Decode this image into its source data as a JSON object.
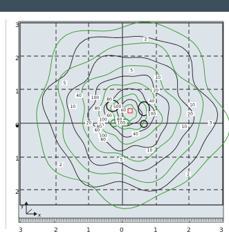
{
  "window": {
    "header_color": "#3d4f5c"
  },
  "plot": {
    "background": "#dde4e9",
    "axis_ticks": {
      "y_left": [
        "3",
        "2",
        "1",
        "0",
        "1",
        "2"
      ],
      "x_bottom": [
        "3",
        "2",
        "1",
        "0",
        "1",
        "2",
        "3"
      ]
    },
    "triad": {
      "y": "y",
      "x": "x"
    },
    "contour_labels": [
      {
        "t": "2",
        "u": 0.62,
        "v": 0.09
      },
      {
        "t": "5",
        "u": 0.22,
        "v": 0.33
      },
      {
        "t": "5",
        "u": 0.55,
        "v": 0.26
      },
      {
        "t": "5",
        "u": 0.5,
        "v": 0.75
      },
      {
        "t": "10",
        "u": 0.68,
        "v": 0.3
      },
      {
        "t": "10",
        "u": 0.26,
        "v": 0.46
      },
      {
        "t": "10",
        "u": 0.85,
        "v": 0.45
      },
      {
        "t": "10",
        "u": 0.81,
        "v": 0.57
      },
      {
        "t": "10",
        "u": 0.64,
        "v": 0.7
      },
      {
        "t": "20",
        "u": 0.67,
        "v": 0.37
      },
      {
        "t": "20",
        "u": 0.84,
        "v": 0.5
      },
      {
        "t": "20",
        "u": 0.34,
        "v": 0.55
      },
      {
        "t": "40",
        "u": 0.29,
        "v": 0.4
      },
      {
        "t": "40",
        "u": 0.65,
        "v": 0.43
      },
      {
        "t": "40",
        "u": 0.4,
        "v": 0.56
      },
      {
        "t": "40",
        "u": 0.57,
        "v": 0.61
      },
      {
        "t": "80",
        "u": 0.38,
        "v": 0.47
      },
      {
        "t": "80",
        "u": 0.44,
        "v": 0.42
      },
      {
        "t": "80",
        "u": 0.49,
        "v": 0.53
      },
      {
        "t": "80",
        "u": 0.39,
        "v": 0.57
      },
      {
        "t": "60",
        "u": 0.51,
        "v": 0.48
      },
      {
        "t": "60",
        "u": 0.44,
        "v": 0.51
      },
      {
        "t": "100",
        "u": 0.41,
        "v": 0.53
      },
      {
        "t": "100",
        "u": 0.5,
        "v": 0.55
      },
      {
        "t": "100",
        "u": 0.65,
        "v": 0.5
      },
      {
        "t": "100",
        "u": 0.37,
        "v": 0.41
      },
      {
        "t": "500",
        "u": 0.48,
        "v": 0.46
      },
      {
        "t": "100",
        "u": 0.41,
        "v": 0.62
      },
      {
        "t": "80",
        "u": 0.41,
        "v": 0.64
      },
      {
        "t": "60",
        "u": 0.38,
        "v": 0.59
      },
      {
        "t": "2",
        "u": 0.2,
        "v": 0.78
      },
      {
        "t": "2",
        "u": 0.83,
        "v": 0.83
      },
      {
        "t": "3",
        "u": 0.94,
        "v": 0.55
      }
    ]
  }
}
